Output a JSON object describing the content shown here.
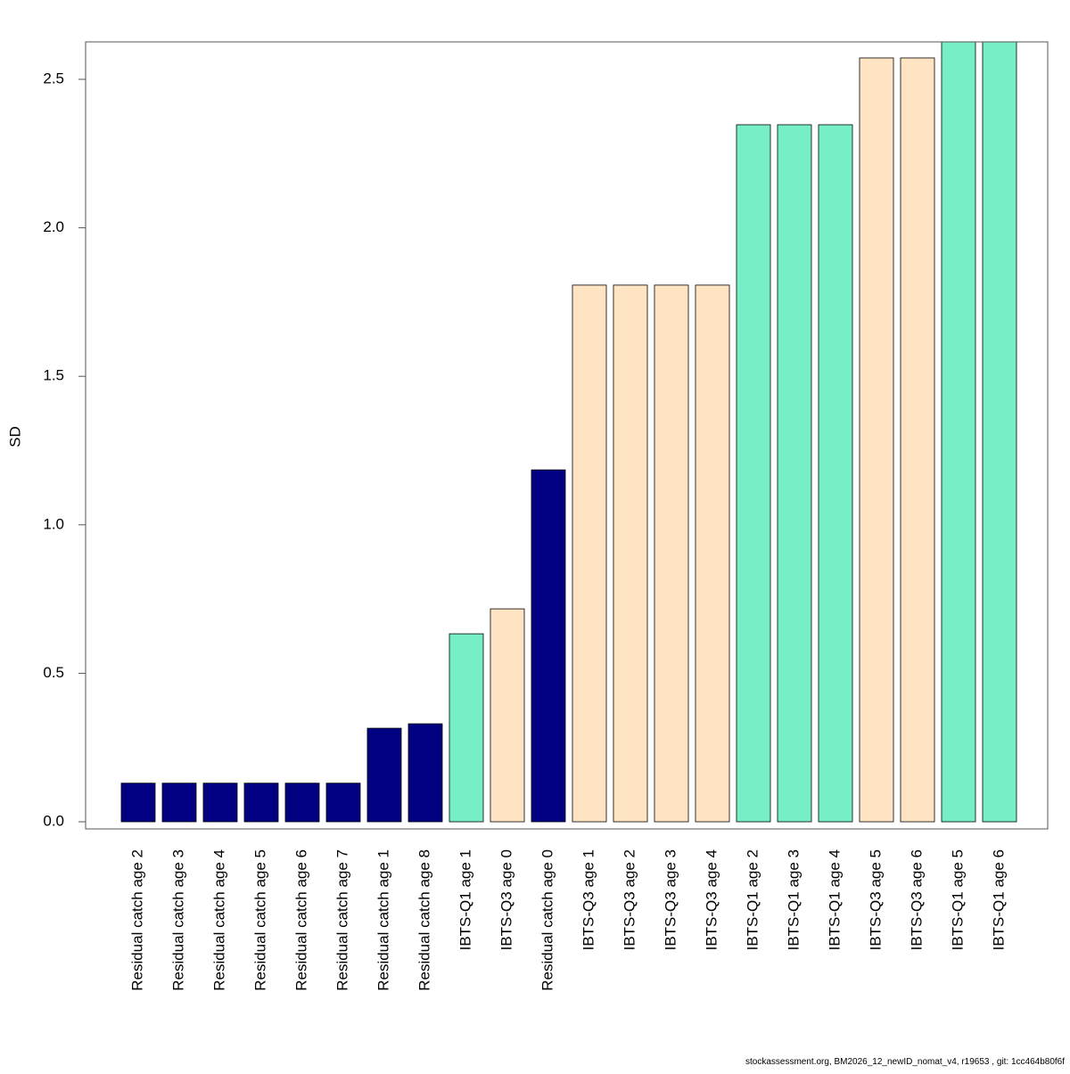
{
  "chart_data": {
    "type": "bar",
    "ylabel": "SD",
    "footer": "stockassessment.org, BM2026_12_newID_nomat_v4, r19653 , git: 1cc464b80f6f",
    "categories": [
      "Residual catch age 2",
      "Residual catch age 3",
      "Residual catch age 4",
      "Residual catch age 5",
      "Residual catch age 6",
      "Residual catch age 7",
      "Residual catch age 1",
      "Residual catch age 8",
      "IBTS-Q1 age 1",
      "IBTS-Q3 age 0",
      "Residual catch age 0",
      "IBTS-Q3 age 1",
      "IBTS-Q3 age 2",
      "IBTS-Q3 age 3",
      "IBTS-Q3 age 4",
      "IBTS-Q1 age 2",
      "IBTS-Q1 age 3",
      "IBTS-Q1 age 4",
      "IBTS-Q3 age 5",
      "IBTS-Q3 age 6",
      "IBTS-Q1 age 5",
      "IBTS-Q1 age 6"
    ],
    "values": [
      0.13,
      0.13,
      0.13,
      0.13,
      0.13,
      0.13,
      0.315,
      0.33,
      0.633,
      0.717,
      1.185,
      1.807,
      1.807,
      1.807,
      1.807,
      2.347,
      2.347,
      2.347,
      2.572,
      2.572,
      2.63,
      2.63
    ],
    "colors": [
      "#000080",
      "#000080",
      "#000080",
      "#000080",
      "#000080",
      "#000080",
      "#000080",
      "#000080",
      "#76EEC6",
      "#FFE4C4",
      "#000080",
      "#FFE4C4",
      "#FFE4C4",
      "#FFE4C4",
      "#FFE4C4",
      "#76EEC6",
      "#76EEC6",
      "#76EEC6",
      "#FFE4C4",
      "#FFE4C4",
      "#76EEC6",
      "#76EEC6"
    ],
    "ylim": [
      -0.024,
      2.626
    ],
    "yticks": [
      {
        "value": 0,
        "label": "0.0"
      },
      0.5,
      {
        "value": 1,
        "label": "1.0"
      },
      1.5,
      {
        "value": 2,
        "label": "2.0"
      },
      2.5
    ]
  }
}
